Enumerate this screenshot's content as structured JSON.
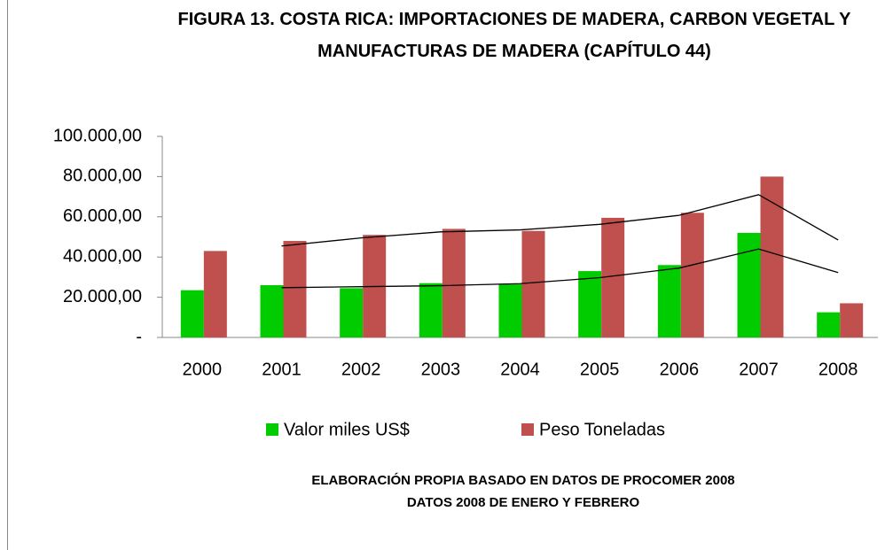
{
  "chart_data": {
    "type": "bar",
    "title": "FIGURA 13. COSTA RICA: IMPORTACIONES DE MADERA, CARBON VEGETAL Y MANUFACTURAS DE MADERA (CAPÍTULO 44)",
    "categories": [
      "2000",
      "2001",
      "2002",
      "2003",
      "2004",
      "2005",
      "2006",
      "2007",
      "2008"
    ],
    "series": [
      {
        "name": "Valor miles US$",
        "color": "#00cc00",
        "values": [
          23500,
          26000,
          24500,
          27000,
          26500,
          33000,
          36000,
          52000,
          12500
        ]
      },
      {
        "name": "Peso Toneladas",
        "color": "#c0504d",
        "values": [
          43000,
          48000,
          51000,
          54000,
          53000,
          59500,
          62000,
          80000,
          17000
        ]
      }
    ],
    "trendlines": [
      {
        "color": "#000000",
        "values": [
          null,
          24750,
          25250,
          25750,
          26750,
          29750,
          34500,
          44000,
          32250
        ]
      },
      {
        "color": "#000000",
        "values": [
          null,
          45500,
          49500,
          52500,
          53500,
          56250,
          60750,
          71000,
          48500
        ]
      }
    ],
    "ylim": [
      0,
      100000
    ],
    "yticks": [
      {
        "value": 0,
        "label": "-"
      },
      {
        "value": 20000,
        "label": "20.000,00"
      },
      {
        "value": 40000,
        "label": "40.000,00"
      },
      {
        "value": 60000,
        "label": "60.000,00"
      },
      {
        "value": 80000,
        "label": "80.000,00"
      },
      {
        "value": 100000,
        "label": "100.000,00"
      }
    ],
    "legend": "bottom",
    "notes": [
      "ELABORACIÓN PROPIA BASADO EN DATOS DE PROCOMER 2008",
      "DATOS 2008 DE ENERO Y FEBRERO"
    ]
  }
}
